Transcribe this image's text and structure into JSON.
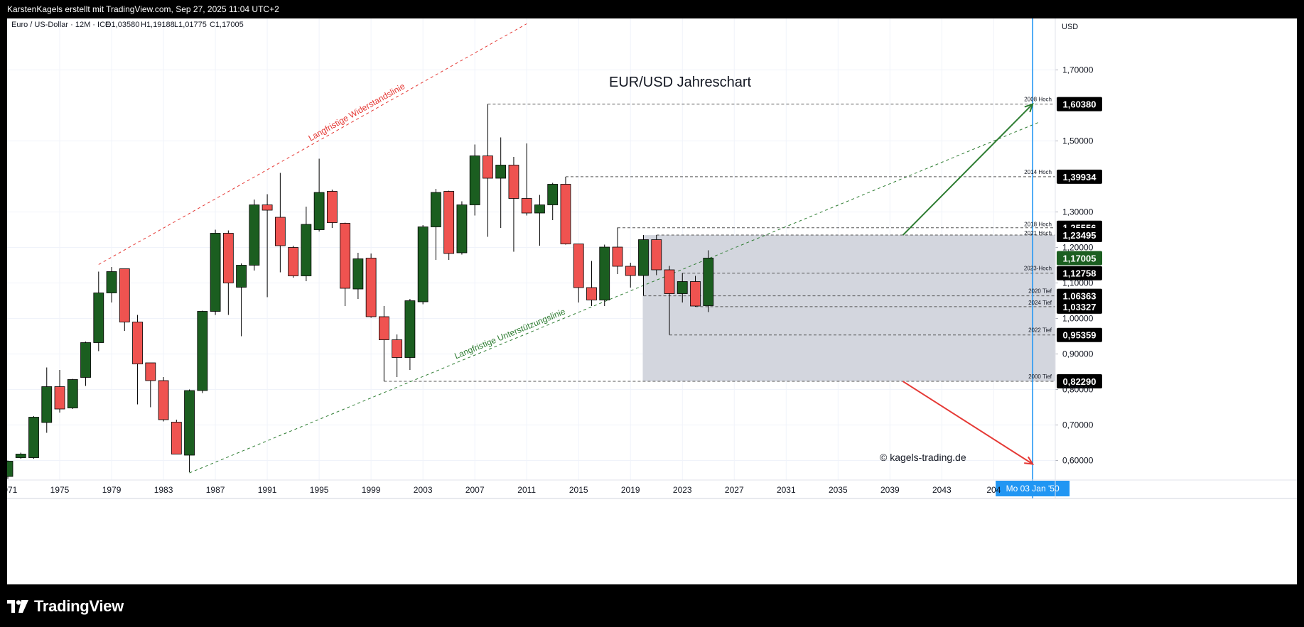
{
  "header": {
    "author_line": "KarstenKagels erstellt mit TradingView.com, Sep 27, 2025 11:04 UTC+2"
  },
  "symbol_info": {
    "name": "Euro / US-Dollar · 12M · ICE",
    "open": "O1,03580",
    "high": "H1,19188",
    "low": "L1,01775",
    "close": "C1,17005"
  },
  "currency_label": "USD",
  "brand": {
    "name": "TradingView"
  },
  "colors": {
    "bull": "#1b5e20",
    "bear": "#ef5350",
    "resistance": "#e53935",
    "support": "#2e7d32",
    "cursor_line": "#2196f3",
    "price_badge": "#1b5e20",
    "zone": "#d1d4dc"
  },
  "chart_data": {
    "type": "candlestick",
    "title": "EUR/USD Jahreschart",
    "copyright": "© kagels-trading.de",
    "xlim": [
      1971,
      2052
    ],
    "ylim": [
      0.545,
      1.845
    ],
    "x_ticks": [
      "1971",
      "1975",
      "1979",
      "1983",
      "1987",
      "1991",
      "1995",
      "1999",
      "2003",
      "2007",
      "2011",
      "2015",
      "2019",
      "2023",
      "2027",
      "2031",
      "2035",
      "2039",
      "2043",
      "204"
    ],
    "y_ticks": [
      "1,70000",
      "1,50000",
      "1,30000",
      "1,20000",
      "1,10000",
      "1,00000",
      "0,90000",
      "0,80000",
      "0,70000",
      "0,60000"
    ],
    "crosshair_label": "Mo 03 Jan '50",
    "candles": [
      {
        "year": 1971,
        "o": 0.555,
        "h": 0.6,
        "l": 0.548,
        "c": 0.598
      },
      {
        "year": 1972,
        "o": 0.608,
        "h": 0.622,
        "l": 0.605,
        "c": 0.618
      },
      {
        "year": 1973,
        "o": 0.608,
        "h": 0.725,
        "l": 0.605,
        "c": 0.722
      },
      {
        "year": 1974,
        "o": 0.707,
        "h": 0.862,
        "l": 0.678,
        "c": 0.808
      },
      {
        "year": 1975,
        "o": 0.808,
        "h": 0.855,
        "l": 0.735,
        "c": 0.745
      },
      {
        "year": 1976,
        "o": 0.748,
        "h": 0.83,
        "l": 0.745,
        "c": 0.828
      },
      {
        "year": 1977,
        "o": 0.834,
        "h": 0.935,
        "l": 0.81,
        "c": 0.932
      },
      {
        "year": 1978,
        "o": 0.932,
        "h": 1.132,
        "l": 0.908,
        "c": 1.072
      },
      {
        "year": 1979,
        "o": 1.072,
        "h": 1.145,
        "l": 1.045,
        "c": 1.132
      },
      {
        "year": 1980,
        "o": 1.14,
        "h": 1.14,
        "l": 0.965,
        "c": 0.99
      },
      {
        "year": 1981,
        "o": 0.99,
        "h": 1.01,
        "l": 0.758,
        "c": 0.872
      },
      {
        "year": 1982,
        "o": 0.875,
        "h": 0.875,
        "l": 0.75,
        "c": 0.825
      },
      {
        "year": 1983,
        "o": 0.825,
        "h": 0.835,
        "l": 0.71,
        "c": 0.715
      },
      {
        "year": 1984,
        "o": 0.708,
        "h": 0.715,
        "l": 0.618,
        "c": 0.618
      },
      {
        "year": 1985,
        "o": 0.615,
        "h": 0.8,
        "l": 0.567,
        "c": 0.797
      },
      {
        "year": 1986,
        "o": 0.797,
        "h": 1.022,
        "l": 0.79,
        "c": 1.02
      },
      {
        "year": 1987,
        "o": 1.02,
        "h": 1.25,
        "l": 1.01,
        "c": 1.24
      },
      {
        "year": 1988,
        "o": 1.24,
        "h": 1.248,
        "l": 1.01,
        "c": 1.1
      },
      {
        "year": 1989,
        "o": 1.088,
        "h": 1.155,
        "l": 0.95,
        "c": 1.15
      },
      {
        "year": 1990,
        "o": 1.15,
        "h": 1.335,
        "l": 1.135,
        "c": 1.32
      },
      {
        "year": 1991,
        "o": 1.32,
        "h": 1.35,
        "l": 1.06,
        "c": 1.305
      },
      {
        "year": 1992,
        "o": 1.285,
        "h": 1.41,
        "l": 1.13,
        "c": 1.205
      },
      {
        "year": 1993,
        "o": 1.2,
        "h": 1.205,
        "l": 1.115,
        "c": 1.12
      },
      {
        "year": 1994,
        "o": 1.12,
        "h": 1.315,
        "l": 1.105,
        "c": 1.265
      },
      {
        "year": 1995,
        "o": 1.25,
        "h": 1.45,
        "l": 1.245,
        "c": 1.355
      },
      {
        "year": 1996,
        "o": 1.358,
        "h": 1.363,
        "l": 1.255,
        "c": 1.27
      },
      {
        "year": 1997,
        "o": 1.268,
        "h": 1.27,
        "l": 1.035,
        "c": 1.085
      },
      {
        "year": 1998,
        "o": 1.083,
        "h": 1.185,
        "l": 1.055,
        "c": 1.168
      },
      {
        "year": 1999,
        "o": 1.17,
        "h": 1.183,
        "l": 1.002,
        "c": 1.005
      },
      {
        "year": 2000,
        "o": 1.005,
        "h": 1.035,
        "l": 0.823,
        "c": 0.94
      },
      {
        "year": 2001,
        "o": 0.94,
        "h": 0.955,
        "l": 0.835,
        "c": 0.89
      },
      {
        "year": 2002,
        "o": 0.89,
        "h": 1.055,
        "l": 0.855,
        "c": 1.05
      },
      {
        "year": 2003,
        "o": 1.047,
        "h": 1.263,
        "l": 1.04,
        "c": 1.258
      },
      {
        "year": 2004,
        "o": 1.258,
        "h": 1.365,
        "l": 1.165,
        "c": 1.355
      },
      {
        "year": 2005,
        "o": 1.358,
        "h": 1.36,
        "l": 1.165,
        "c": 1.183
      },
      {
        "year": 2006,
        "o": 1.185,
        "h": 1.33,
        "l": 1.18,
        "c": 1.32
      },
      {
        "year": 2007,
        "o": 1.32,
        "h": 1.49,
        "l": 1.29,
        "c": 1.458
      },
      {
        "year": 2008,
        "o": 1.458,
        "h": 1.604,
        "l": 1.23,
        "c": 1.395
      },
      {
        "year": 2009,
        "o": 1.395,
        "h": 1.51,
        "l": 1.255,
        "c": 1.432
      },
      {
        "year": 2010,
        "o": 1.432,
        "h": 1.455,
        "l": 1.188,
        "c": 1.338
      },
      {
        "year": 2011,
        "o": 1.338,
        "h": 1.493,
        "l": 1.29,
        "c": 1.297
      },
      {
        "year": 2012,
        "o": 1.297,
        "h": 1.348,
        "l": 1.205,
        "c": 1.32
      },
      {
        "year": 2013,
        "o": 1.32,
        "h": 1.382,
        "l": 1.277,
        "c": 1.378
      },
      {
        "year": 2014,
        "o": 1.378,
        "h": 1.399,
        "l": 1.208,
        "c": 1.21
      },
      {
        "year": 2015,
        "o": 1.21,
        "h": 1.21,
        "l": 1.045,
        "c": 1.087
      },
      {
        "year": 2016,
        "o": 1.087,
        "h": 1.162,
        "l": 1.035,
        "c": 1.052
      },
      {
        "year": 2017,
        "o": 1.052,
        "h": 1.208,
        "l": 1.035,
        "c": 1.201
      },
      {
        "year": 2018,
        "o": 1.201,
        "h": 1.256,
        "l": 1.125,
        "c": 1.147
      },
      {
        "year": 2019,
        "o": 1.147,
        "h": 1.157,
        "l": 1.087,
        "c": 1.121
      },
      {
        "year": 2020,
        "o": 1.121,
        "h": 1.235,
        "l": 1.064,
        "c": 1.222
      },
      {
        "year": 2021,
        "o": 1.222,
        "h": 1.235,
        "l": 1.122,
        "c": 1.137
      },
      {
        "year": 2022,
        "o": 1.137,
        "h": 1.148,
        "l": 0.954,
        "c": 1.07
      },
      {
        "year": 2023,
        "o": 1.07,
        "h": 1.128,
        "l": 1.045,
        "c": 1.104
      },
      {
        "year": 2024,
        "o": 1.104,
        "h": 1.12,
        "l": 1.033,
        "c": 1.035
      },
      {
        "year": 2025,
        "o": 1.036,
        "h": 1.192,
        "l": 1.018,
        "c": 1.17
      }
    ],
    "price_badges": [
      {
        "label": "1,60380",
        "value": 1.6038,
        "kind": "dark",
        "note": "2008 Hoch"
      },
      {
        "label": "1,39934",
        "value": 1.39934,
        "kind": "dark",
        "note": "2014 Hoch"
      },
      {
        "label": "1,25556",
        "value": 1.25556,
        "kind": "dark",
        "note": "2018 Hoch"
      },
      {
        "label": "1,23495",
        "value": 1.23495,
        "kind": "dark",
        "note": "2021 Hoch"
      },
      {
        "label": "1,17005",
        "value": 1.17005,
        "kind": "green",
        "note": ""
      },
      {
        "label": "1,12758",
        "value": 1.12758,
        "kind": "dark",
        "note": "2023-Hoch"
      },
      {
        "label": "1,06363",
        "value": 1.06363,
        "kind": "dark",
        "note": "2020 Tief"
      },
      {
        "label": "1,03327",
        "value": 1.03327,
        "kind": "dark",
        "note": "2024 Tief"
      },
      {
        "label": "0,95359",
        "value": 0.95359,
        "kind": "dark",
        "note": "2022 Tief"
      },
      {
        "label": "0,82290",
        "value": 0.8229,
        "kind": "dark",
        "note": "2000 Tief"
      }
    ],
    "levels": [
      {
        "from": 2008,
        "value": 1.6038
      },
      {
        "from": 2014,
        "value": 1.39934
      },
      {
        "from": 2018,
        "value": 1.25556
      },
      {
        "from": 2021,
        "value": 1.23495
      },
      {
        "from": 2023,
        "value": 1.12758
      },
      {
        "from": 2020,
        "value": 1.06363
      },
      {
        "from": 2024,
        "value": 1.03327
      },
      {
        "from": 2022,
        "value": 0.95359
      },
      {
        "from": 2000,
        "value": 0.8229
      }
    ],
    "zone": {
      "x_from": 2020.0,
      "x_to": 2050.0,
      "y_from": 0.8229,
      "y_to": 1.23495
    },
    "resistance_line": {
      "label": "Langfristige Widerstandslinie",
      "x1": 1978,
      "y1": 1.152,
      "x2": 2011,
      "y2": 1.83
    },
    "support_line": {
      "label": "Langfristige Unterstützungslinie",
      "x1": 1985,
      "y1": 0.565,
      "x2": 2050.5,
      "y2": 1.553
    },
    "forecast_up": {
      "x1": 2040,
      "y1": 1.23495,
      "x2": 2050,
      "y2": 1.6038
    },
    "forecast_down": {
      "x1": 2040,
      "y1": 0.8229,
      "x2": 2050,
      "y2": 0.59
    },
    "cursor_x": 2050
  }
}
